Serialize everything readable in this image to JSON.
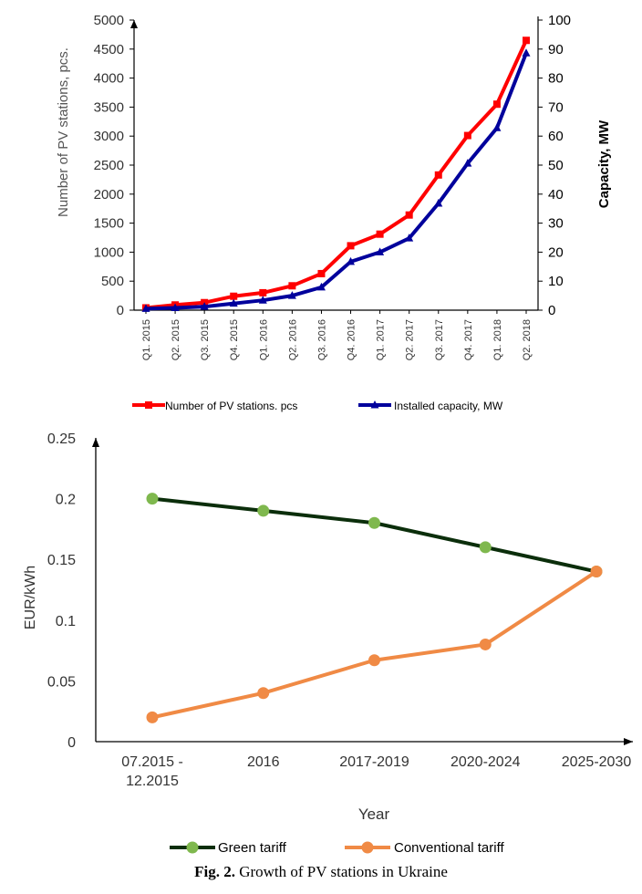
{
  "caption": {
    "label": "Fig. 2.",
    "text": "Growth of PV stations in Ukraine"
  },
  "chart_data": [
    {
      "type": "line",
      "ylabel": "Number of PV stations, pcs.",
      "y2label": "Capacity, MW",
      "ylim": [
        0,
        5000
      ],
      "y2lim": [
        0,
        100
      ],
      "yticks": [
        "0",
        "500",
        "1000",
        "1500",
        "2000",
        "2500",
        "3000",
        "3500",
        "4000",
        "4500",
        "5000"
      ],
      "y2ticks": [
        "0",
        "10",
        "20",
        "30",
        "40",
        "50",
        "60",
        "70",
        "80",
        "90",
        "100"
      ],
      "categories": [
        "Q1. 2015",
        "Q2. 2015",
        "Q3. 2015",
        "Q4. 2015",
        "Q1. 2016",
        "Q2. 2016",
        "Q3. 2016",
        "Q4. 2016",
        "Q1. 2017",
        "Q2. 2017",
        "Q3. 2017",
        "Q4. 2017",
        "Q1. 2018",
        "Q2. 2018"
      ],
      "series": [
        {
          "name": "Number of PV stations. pcs",
          "axis": "left",
          "color": "#ff0000",
          "marker": "square",
          "values": [
            40,
            90,
            130,
            240,
            300,
            420,
            630,
            1110,
            1310,
            1640,
            2330,
            3010,
            3550,
            4650
          ]
        },
        {
          "name": "Installed capacity, MW",
          "axis": "right",
          "color": "#00009c",
          "marker": "triangle",
          "values": [
            0.5,
            0.8,
            1.2,
            2.3,
            3.4,
            5.0,
            7.9,
            16.7,
            20.0,
            24.8,
            36.8,
            50.6,
            62.8,
            88.6
          ]
        }
      ],
      "legend_position": "bottom",
      "grid": false
    },
    {
      "type": "line",
      "xlabel": "Year",
      "ylabel": "EUR/kWh",
      "ylim": [
        0,
        0.25
      ],
      "yticks": [
        "0",
        "0.05",
        "0.1",
        "0.15",
        "0.2",
        "0.25"
      ],
      "categories": [
        "07.2015 - 12.2015",
        "2016",
        "2017-2019",
        "2020-2024",
        "2025-2030"
      ],
      "category_lines": [
        [
          "07.2015 -",
          "12.2015"
        ],
        [
          "2016"
        ],
        [
          "2017-2019"
        ],
        [
          "2020-2024"
        ],
        [
          "2025-2030"
        ]
      ],
      "series": [
        {
          "name": "Green tariff",
          "color": "#0b2e0b",
          "marker_color": "#7fb84e",
          "values": [
            0.2,
            0.19,
            0.18,
            0.16,
            0.14
          ]
        },
        {
          "name": "Conventional tariff",
          "color": "#f08a45",
          "marker_color": "#f08a45",
          "values": [
            0.02,
            0.04,
            0.067,
            0.08,
            0.14
          ]
        }
      ],
      "legend_position": "bottom",
      "grid": false
    }
  ]
}
